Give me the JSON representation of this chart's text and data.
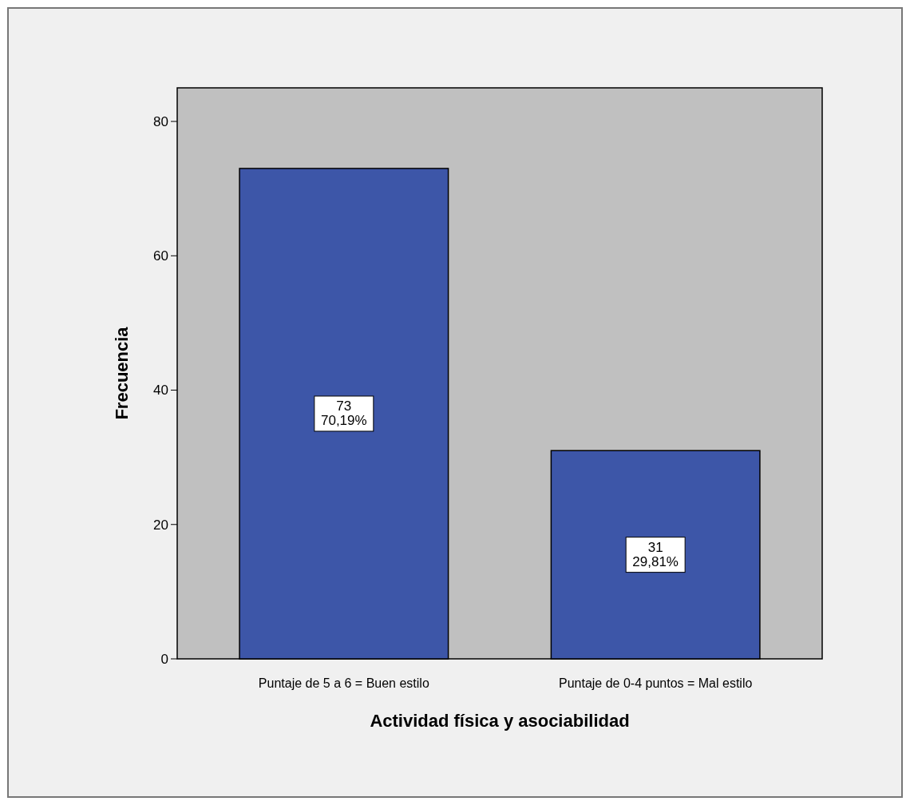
{
  "chart_data": {
    "type": "bar",
    "xlabel": "Actividad física y asociabilidad",
    "ylabel": "Frecuencia",
    "categories": [
      "Puntaje de 5 a 6 = Buen estilo",
      "Puntaje de 0-4 puntos = Mal estilo"
    ],
    "values": [
      73,
      31
    ],
    "value_labels": [
      "73\n70,19%",
      "31\n29,81%"
    ],
    "color": "#3d56a8",
    "ylim": [
      0,
      85
    ],
    "yticks": [
      0,
      20,
      40,
      60,
      80
    ],
    "grid": false
  }
}
